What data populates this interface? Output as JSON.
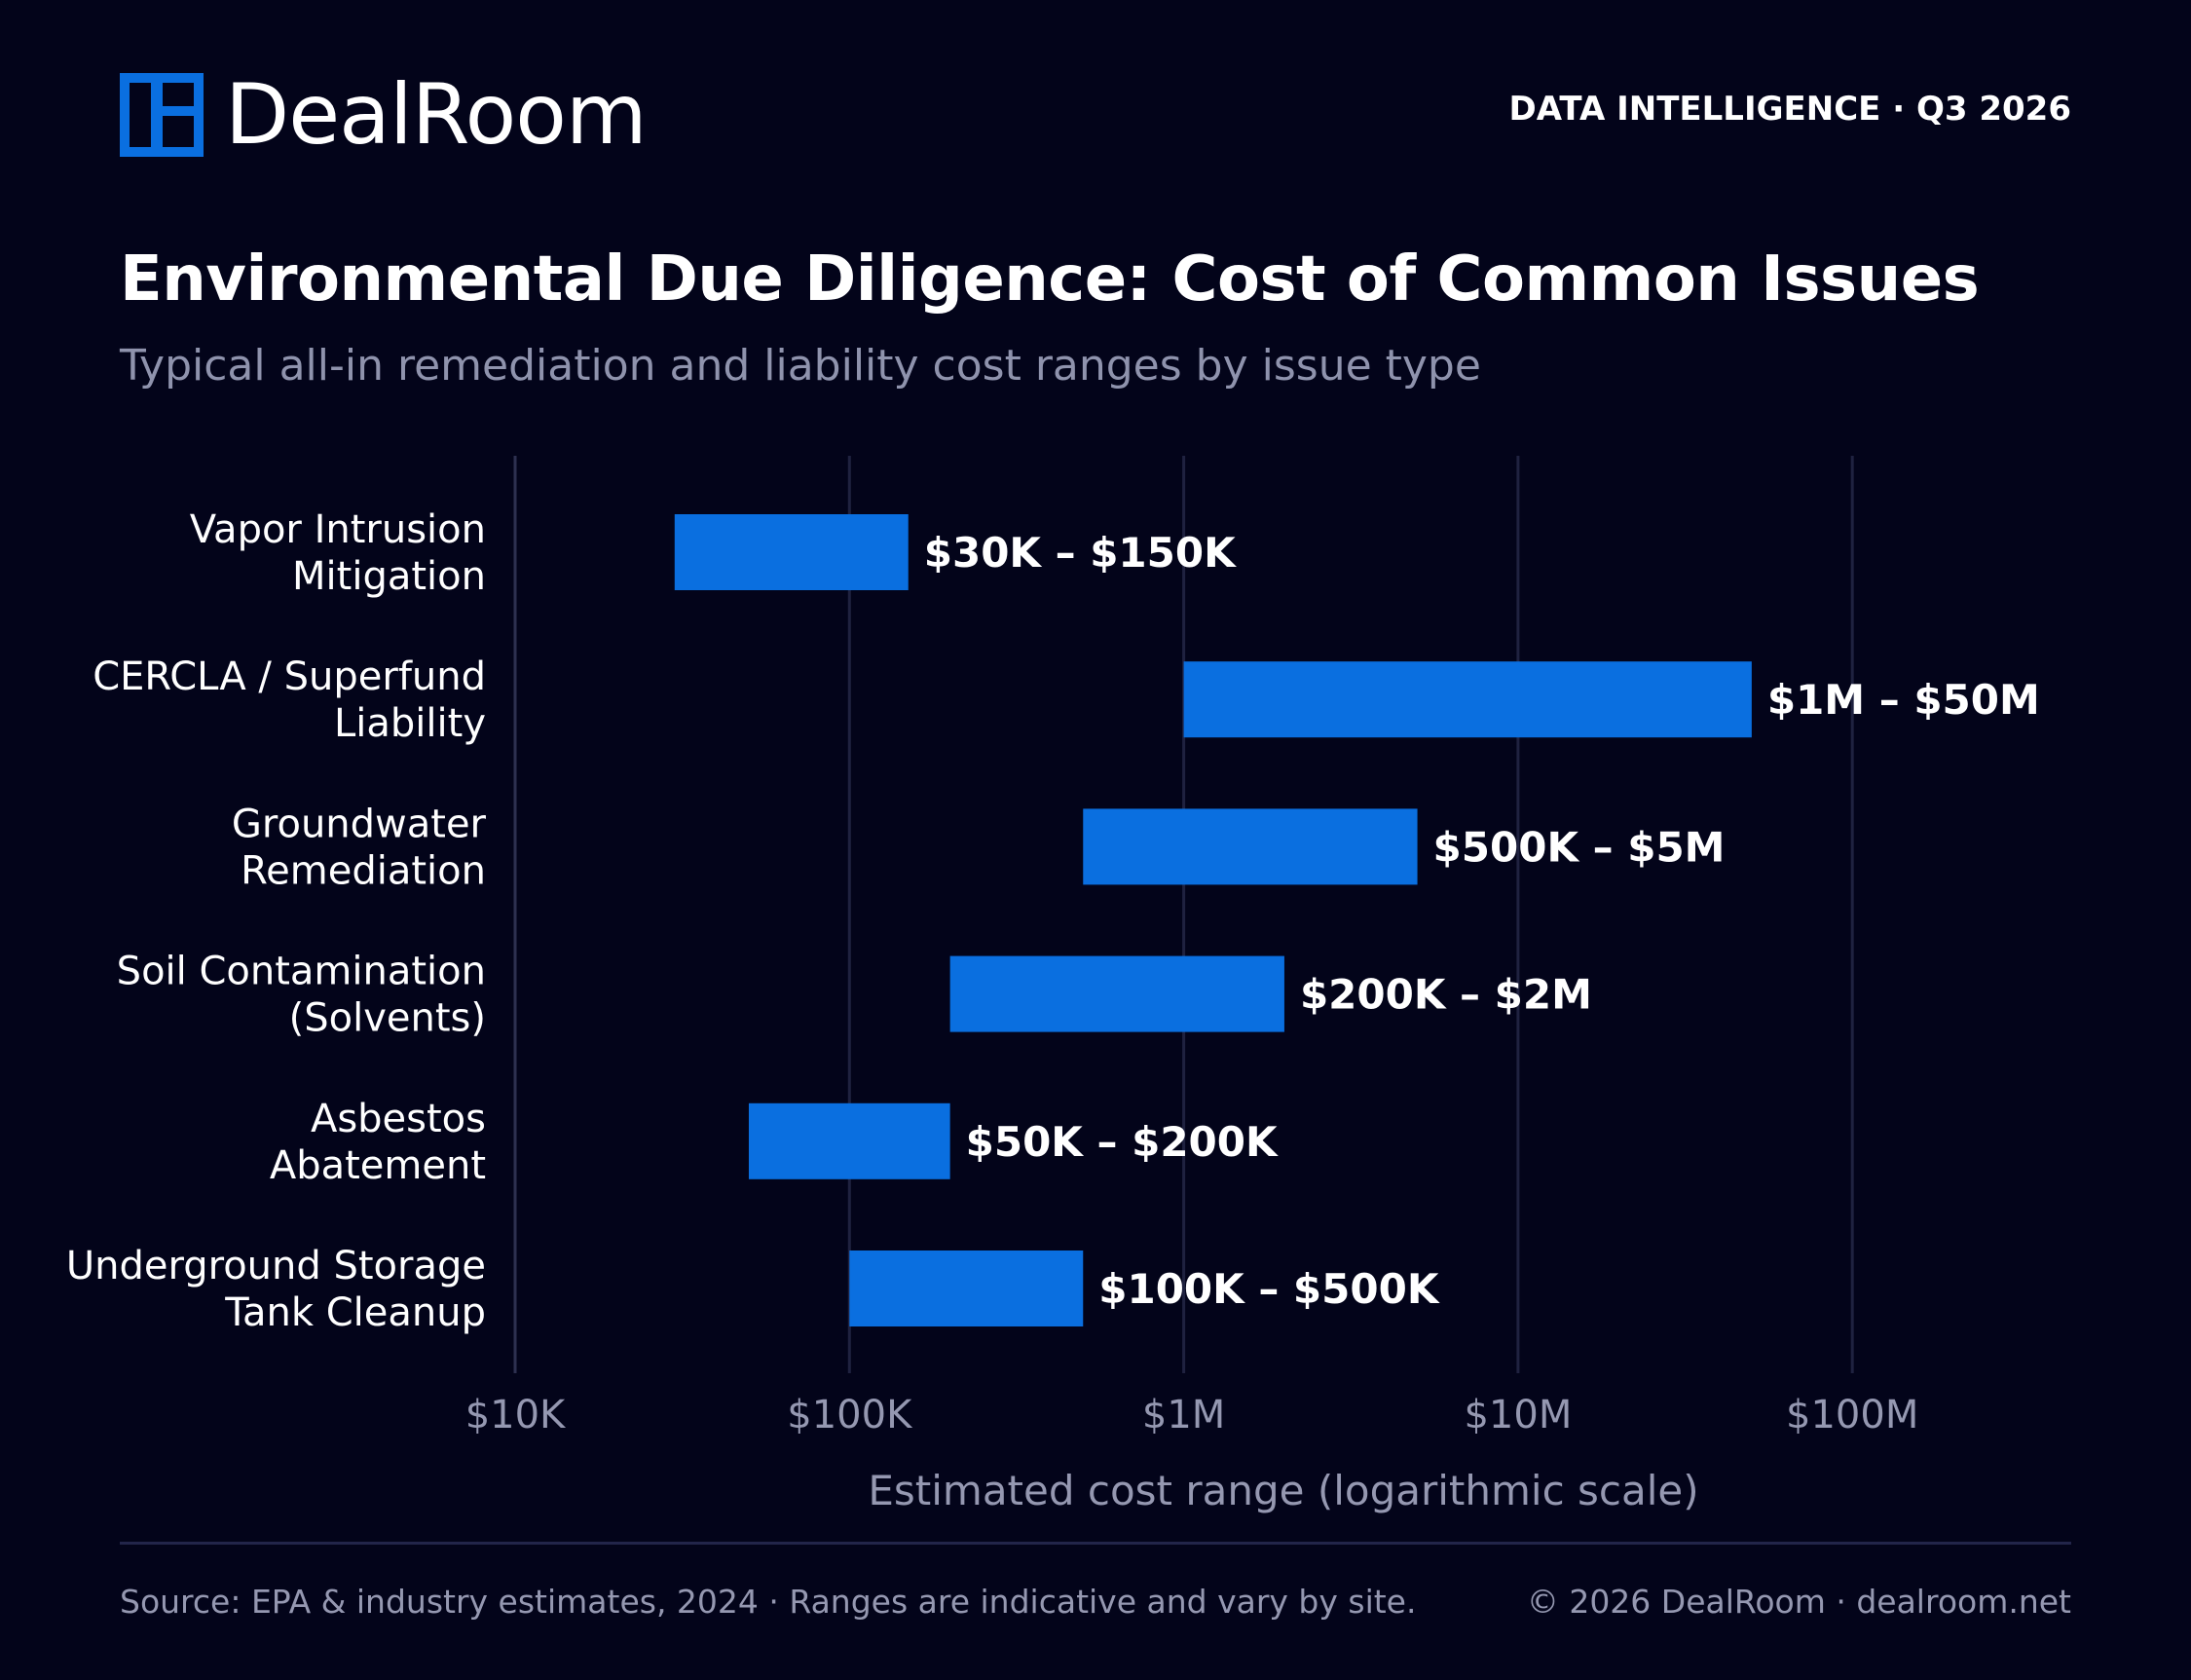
{
  "brand": {
    "name": "DealRoom",
    "logo_icon": "dealroom-logo-icon",
    "accent_color": "#0a6fe0"
  },
  "header": {
    "report_tag": "DATA INTELLIGENCE · Q3 2026"
  },
  "title": "Environmental Due Diligence: Cost of Common Issues",
  "subtitle": "Typical all-in remediation and liability cost ranges by issue type",
  "chart_data": {
    "type": "bar",
    "orientation": "horizontal",
    "subtype": "range",
    "x_scale": "log",
    "xlabel": "Estimated cost range (logarithmic scale)",
    "ylabel": "",
    "xlim": [
      10000,
      100000000
    ],
    "x_ticks": [
      10000,
      100000,
      1000000,
      10000000,
      100000000
    ],
    "x_tick_labels": [
      "$10K",
      "$100K",
      "$1M",
      "$10M",
      "$100M"
    ],
    "grid": true,
    "legend": "none",
    "bar_color": "#0a6fe0",
    "categories": [
      [
        "Vapor Intrusion",
        "Mitigation"
      ],
      [
        "CERCLA / Superfund",
        "Liability"
      ],
      [
        "Groundwater",
        "Remediation"
      ],
      [
        "Soil Contamination",
        "(Solvents)"
      ],
      [
        "Asbestos",
        "Abatement"
      ],
      [
        "Underground Storage",
        "Tank Cleanup"
      ]
    ],
    "low": [
      30000,
      1000000,
      500000,
      200000,
      50000,
      100000
    ],
    "high": [
      150000,
      50000000,
      5000000,
      2000000,
      200000,
      500000
    ],
    "data_labels": [
      "$30K – $150K",
      "$1M – $50M",
      "$500K – $5M",
      "$200K – $2M",
      "$50K – $200K",
      "$100K – $500K"
    ]
  },
  "footer": {
    "source": "Source: EPA & industry estimates, 2024 · Ranges are indicative and vary by site.",
    "copyright": "© 2026 DealRoom · dealroom.net"
  }
}
